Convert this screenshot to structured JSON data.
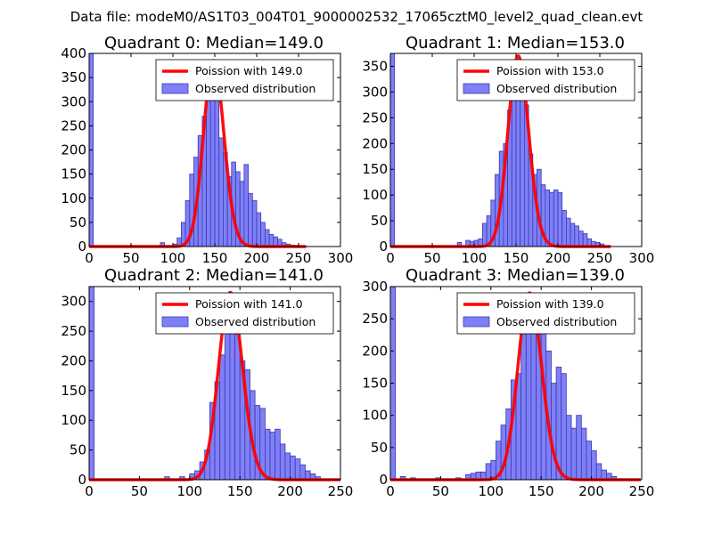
{
  "figure": {
    "suptitle": "Data file: modeM0/AS1T03_004T01_9000002532_17065cztM0_level2_quad_clean.evt"
  },
  "colors": {
    "bar_fill": "#7f7ff7",
    "bar_edge": "#3a3ab0",
    "line": "#ff0000",
    "axis": "#000000"
  },
  "chart_data": [
    {
      "type": "bar",
      "title": "Quadrant 0: Median=149.0",
      "xlim": [
        0,
        300
      ],
      "ylim": [
        0,
        400
      ],
      "xticks": [
        0,
        50,
        100,
        150,
        200,
        250,
        300
      ],
      "yticks": [
        0,
        50,
        100,
        150,
        200,
        250,
        300,
        350,
        400
      ],
      "bin_width": 5,
      "bins": [
        [
          0,
          400
        ],
        [
          85,
          8
        ],
        [
          100,
          5
        ],
        [
          105,
          18
        ],
        [
          110,
          50
        ],
        [
          115,
          95
        ],
        [
          120,
          150
        ],
        [
          125,
          185
        ],
        [
          130,
          230
        ],
        [
          135,
          270
        ],
        [
          140,
          350
        ],
        [
          145,
          375
        ],
        [
          150,
          320
        ],
        [
          155,
          225
        ],
        [
          160,
          195
        ],
        [
          165,
          145
        ],
        [
          170,
          175
        ],
        [
          175,
          155
        ],
        [
          180,
          135
        ],
        [
          185,
          170
        ],
        [
          190,
          110
        ],
        [
          195,
          95
        ],
        [
          200,
          70
        ],
        [
          205,
          50
        ],
        [
          210,
          35
        ],
        [
          215,
          25
        ],
        [
          220,
          20
        ],
        [
          225,
          15
        ],
        [
          230,
          8
        ],
        [
          235,
          5
        ],
        [
          240,
          3
        ]
      ],
      "poisson_mean": 149.0,
      "poisson_peak": 385,
      "poisson_label": "Poission with 149.0",
      "hist_label": "Observed distribution"
    },
    {
      "type": "bar",
      "title": "Quadrant 1: Median=153.0",
      "xlim": [
        0,
        300
      ],
      "ylim": [
        0,
        375
      ],
      "xticks": [
        0,
        50,
        100,
        150,
        200,
        250,
        300
      ],
      "yticks": [
        0,
        50,
        100,
        150,
        200,
        250,
        300,
        350
      ],
      "bin_width": 5,
      "bins": [
        [
          0,
          375
        ],
        [
          80,
          8
        ],
        [
          90,
          12
        ],
        [
          95,
          10
        ],
        [
          100,
          12
        ],
        [
          105,
          15
        ],
        [
          110,
          45
        ],
        [
          115,
          60
        ],
        [
          120,
          90
        ],
        [
          125,
          140
        ],
        [
          130,
          185
        ],
        [
          135,
          200
        ],
        [
          140,
          265
        ],
        [
          145,
          325
        ],
        [
          150,
          360
        ],
        [
          155,
          320
        ],
        [
          160,
          275
        ],
        [
          165,
          180
        ],
        [
          170,
          140
        ],
        [
          175,
          150
        ],
        [
          180,
          120
        ],
        [
          185,
          110
        ],
        [
          190,
          105
        ],
        [
          195,
          110
        ],
        [
          200,
          105
        ],
        [
          205,
          70
        ],
        [
          210,
          55
        ],
        [
          215,
          45
        ],
        [
          220,
          40
        ],
        [
          225,
          30
        ],
        [
          230,
          25
        ],
        [
          235,
          15
        ],
        [
          240,
          10
        ],
        [
          245,
          8
        ],
        [
          250,
          5
        ]
      ],
      "poisson_mean": 153.0,
      "poisson_peak": 370,
      "poisson_label": "Poission with 153.0",
      "hist_label": "Observed distribution"
    },
    {
      "type": "bar",
      "title": "Quadrant 2: Median=141.0",
      "xlim": [
        0,
        250
      ],
      "ylim": [
        0,
        325
      ],
      "xticks": [
        0,
        50,
        100,
        150,
        200,
        250
      ],
      "yticks": [
        0,
        50,
        100,
        150,
        200,
        250,
        300
      ],
      "bin_width": 5,
      "bins": [
        [
          0,
          325
        ],
        [
          75,
          5
        ],
        [
          90,
          5
        ],
        [
          100,
          10
        ],
        [
          105,
          15
        ],
        [
          110,
          30
        ],
        [
          115,
          50
        ],
        [
          120,
          130
        ],
        [
          125,
          165
        ],
        [
          130,
          210
        ],
        [
          135,
          290
        ],
        [
          140,
          295
        ],
        [
          145,
          245
        ],
        [
          150,
          200
        ],
        [
          155,
          185
        ],
        [
          160,
          150
        ],
        [
          165,
          125
        ],
        [
          170,
          120
        ],
        [
          175,
          85
        ],
        [
          180,
          80
        ],
        [
          185,
          85
        ],
        [
          190,
          60
        ],
        [
          195,
          45
        ],
        [
          200,
          40
        ],
        [
          205,
          35
        ],
        [
          210,
          25
        ],
        [
          215,
          15
        ],
        [
          220,
          10
        ],
        [
          225,
          5
        ]
      ],
      "poisson_mean": 141.0,
      "poisson_peak": 315,
      "poisson_label": "Poission with 141.0",
      "hist_label": "Observed distribution"
    },
    {
      "type": "bar",
      "title": "Quadrant 3: Median=139.0",
      "xlim": [
        0,
        250
      ],
      "ylim": [
        0,
        300
      ],
      "xticks": [
        0,
        50,
        100,
        150,
        200,
        250
      ],
      "yticks": [
        0,
        50,
        100,
        150,
        200,
        250,
        300
      ],
      "bin_width": 5,
      "bins": [
        [
          0,
          300
        ],
        [
          10,
          5
        ],
        [
          20,
          3
        ],
        [
          45,
          3
        ],
        [
          65,
          3
        ],
        [
          75,
          8
        ],
        [
          80,
          10
        ],
        [
          85,
          12
        ],
        [
          90,
          12
        ],
        [
          95,
          25
        ],
        [
          100,
          30
        ],
        [
          105,
          60
        ],
        [
          110,
          85
        ],
        [
          115,
          110
        ],
        [
          120,
          155
        ],
        [
          125,
          165
        ],
        [
          130,
          275
        ],
        [
          135,
          265
        ],
        [
          140,
          270
        ],
        [
          145,
          285
        ],
        [
          150,
          260
        ],
        [
          155,
          200
        ],
        [
          160,
          150
        ],
        [
          165,
          175
        ],
        [
          170,
          165
        ],
        [
          175,
          100
        ],
        [
          180,
          80
        ],
        [
          185,
          100
        ],
        [
          190,
          80
        ],
        [
          195,
          60
        ],
        [
          200,
          45
        ],
        [
          205,
          25
        ],
        [
          210,
          15
        ],
        [
          215,
          10
        ],
        [
          220,
          5
        ]
      ],
      "poisson_mean": 139.0,
      "poisson_peak": 290,
      "poisson_label": "Poission with 139.0",
      "hist_label": "Observed distribution"
    }
  ]
}
